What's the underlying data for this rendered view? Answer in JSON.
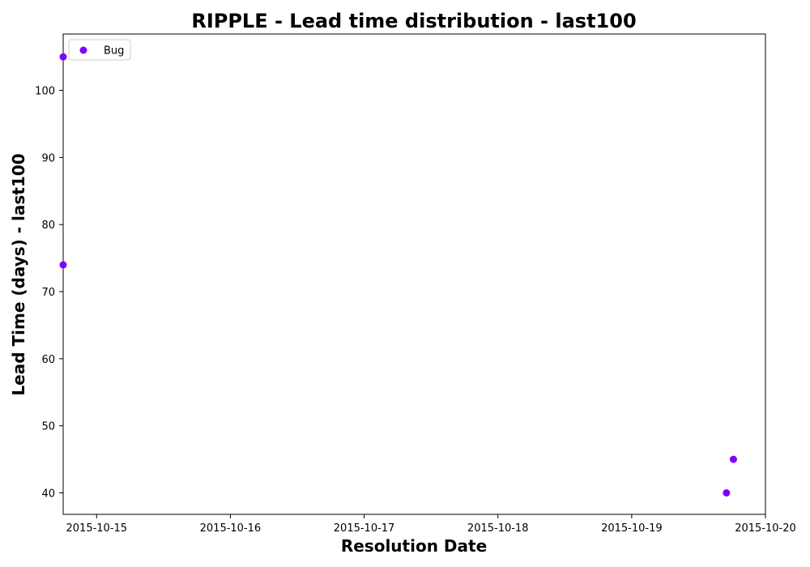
{
  "chart_data": {
    "type": "scatter",
    "title": "RIPPLE - Lead time distribution - last100",
    "xlabel": "Resolution Date",
    "ylabel": "Lead Time (days) - last100",
    "x_type": "date",
    "xlim": [
      "2015-10-14 18:00",
      "2015-10-20 00:00"
    ],
    "ylim": [
      36.8,
      108.4
    ],
    "x_ticks": [
      {
        "value": "2015-10-15 00:00",
        "label": "2015-10-15"
      },
      {
        "value": "2015-10-16 00:00",
        "label": "2015-10-16"
      },
      {
        "value": "2015-10-17 00:00",
        "label": "2015-10-17"
      },
      {
        "value": "2015-10-18 00:00",
        "label": "2015-10-18"
      },
      {
        "value": "2015-10-19 00:00",
        "label": "2015-10-19"
      },
      {
        "value": "2015-10-20 00:00",
        "label": "2015-10-20"
      }
    ],
    "y_ticks": [
      40,
      50,
      60,
      70,
      80,
      90,
      100
    ],
    "grid": false,
    "legend": "top-left",
    "series": [
      {
        "name": "Bug",
        "color": "#7f00ff",
        "points": [
          {
            "x": "2015-10-14 18:00",
            "y": 105
          },
          {
            "x": "2015-10-14 18:00",
            "y": 74
          },
          {
            "x": "2015-10-19 17:00",
            "y": 40
          },
          {
            "x": "2015-10-19 18:15",
            "y": 45
          }
        ]
      }
    ]
  }
}
